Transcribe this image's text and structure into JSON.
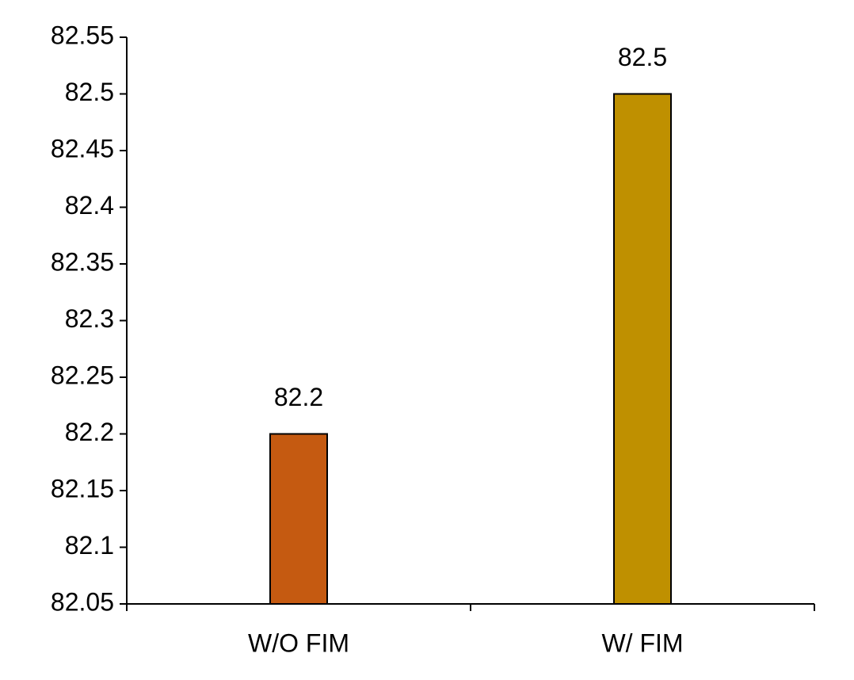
{
  "chart_data": {
    "type": "bar",
    "categories": [
      "W/O FIM",
      "W/ FIM"
    ],
    "values": [
      82.2,
      82.5
    ],
    "colors": [
      "#c55a11",
      "#bf9000"
    ],
    "ylim": [
      82.05,
      82.55
    ],
    "yticks": [
      82.05,
      82.1,
      82.15,
      82.2,
      82.25,
      82.3,
      82.35,
      82.4,
      82.45,
      82.5,
      82.55
    ],
    "grid": false
  }
}
